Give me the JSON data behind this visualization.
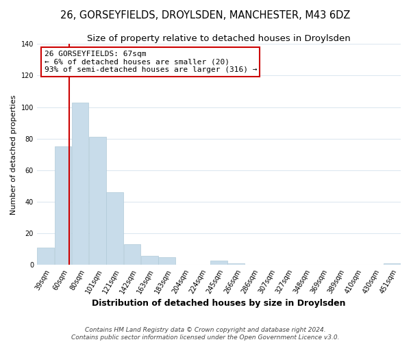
{
  "title": "26, GORSEYFIELDS, DROYLSDEN, MANCHESTER, M43 6DZ",
  "subtitle": "Size of property relative to detached houses in Droylsden",
  "xlabel": "Distribution of detached houses by size in Droylsden",
  "ylabel": "Number of detached properties",
  "bar_labels": [
    "39sqm",
    "60sqm",
    "80sqm",
    "101sqm",
    "121sqm",
    "142sqm",
    "163sqm",
    "183sqm",
    "204sqm",
    "224sqm",
    "245sqm",
    "266sqm",
    "286sqm",
    "307sqm",
    "327sqm",
    "348sqm",
    "369sqm",
    "389sqm",
    "410sqm",
    "430sqm",
    "451sqm"
  ],
  "bar_values": [
    11,
    75,
    103,
    81,
    46,
    13,
    6,
    5,
    0,
    0,
    3,
    1,
    0,
    0,
    0,
    0,
    0,
    0,
    0,
    0,
    1
  ],
  "bar_color": "#c8dcea",
  "bar_edge_color": "#b0cad8",
  "property_line_color": "#cc0000",
  "ylim": [
    0,
    140
  ],
  "yticks": [
    0,
    20,
    40,
    60,
    80,
    100,
    120,
    140
  ],
  "annotation_title": "26 GORSEYFIELDS: 67sqm",
  "annotation_line1": "← 6% of detached houses are smaller (20)",
  "annotation_line2": "93% of semi-detached houses are larger (316) →",
  "annotation_box_color": "#ffffff",
  "annotation_box_edge": "#cc0000",
  "footer1": "Contains HM Land Registry data © Crown copyright and database right 2024.",
  "footer2": "Contains public sector information licensed under the Open Government Licence v3.0.",
  "background_color": "#ffffff",
  "grid_color": "#dde8f0",
  "title_fontsize": 10.5,
  "subtitle_fontsize": 9.5,
  "xlabel_fontsize": 9,
  "ylabel_fontsize": 8,
  "tick_fontsize": 7,
  "annot_fontsize": 8,
  "footer_fontsize": 6.5
}
